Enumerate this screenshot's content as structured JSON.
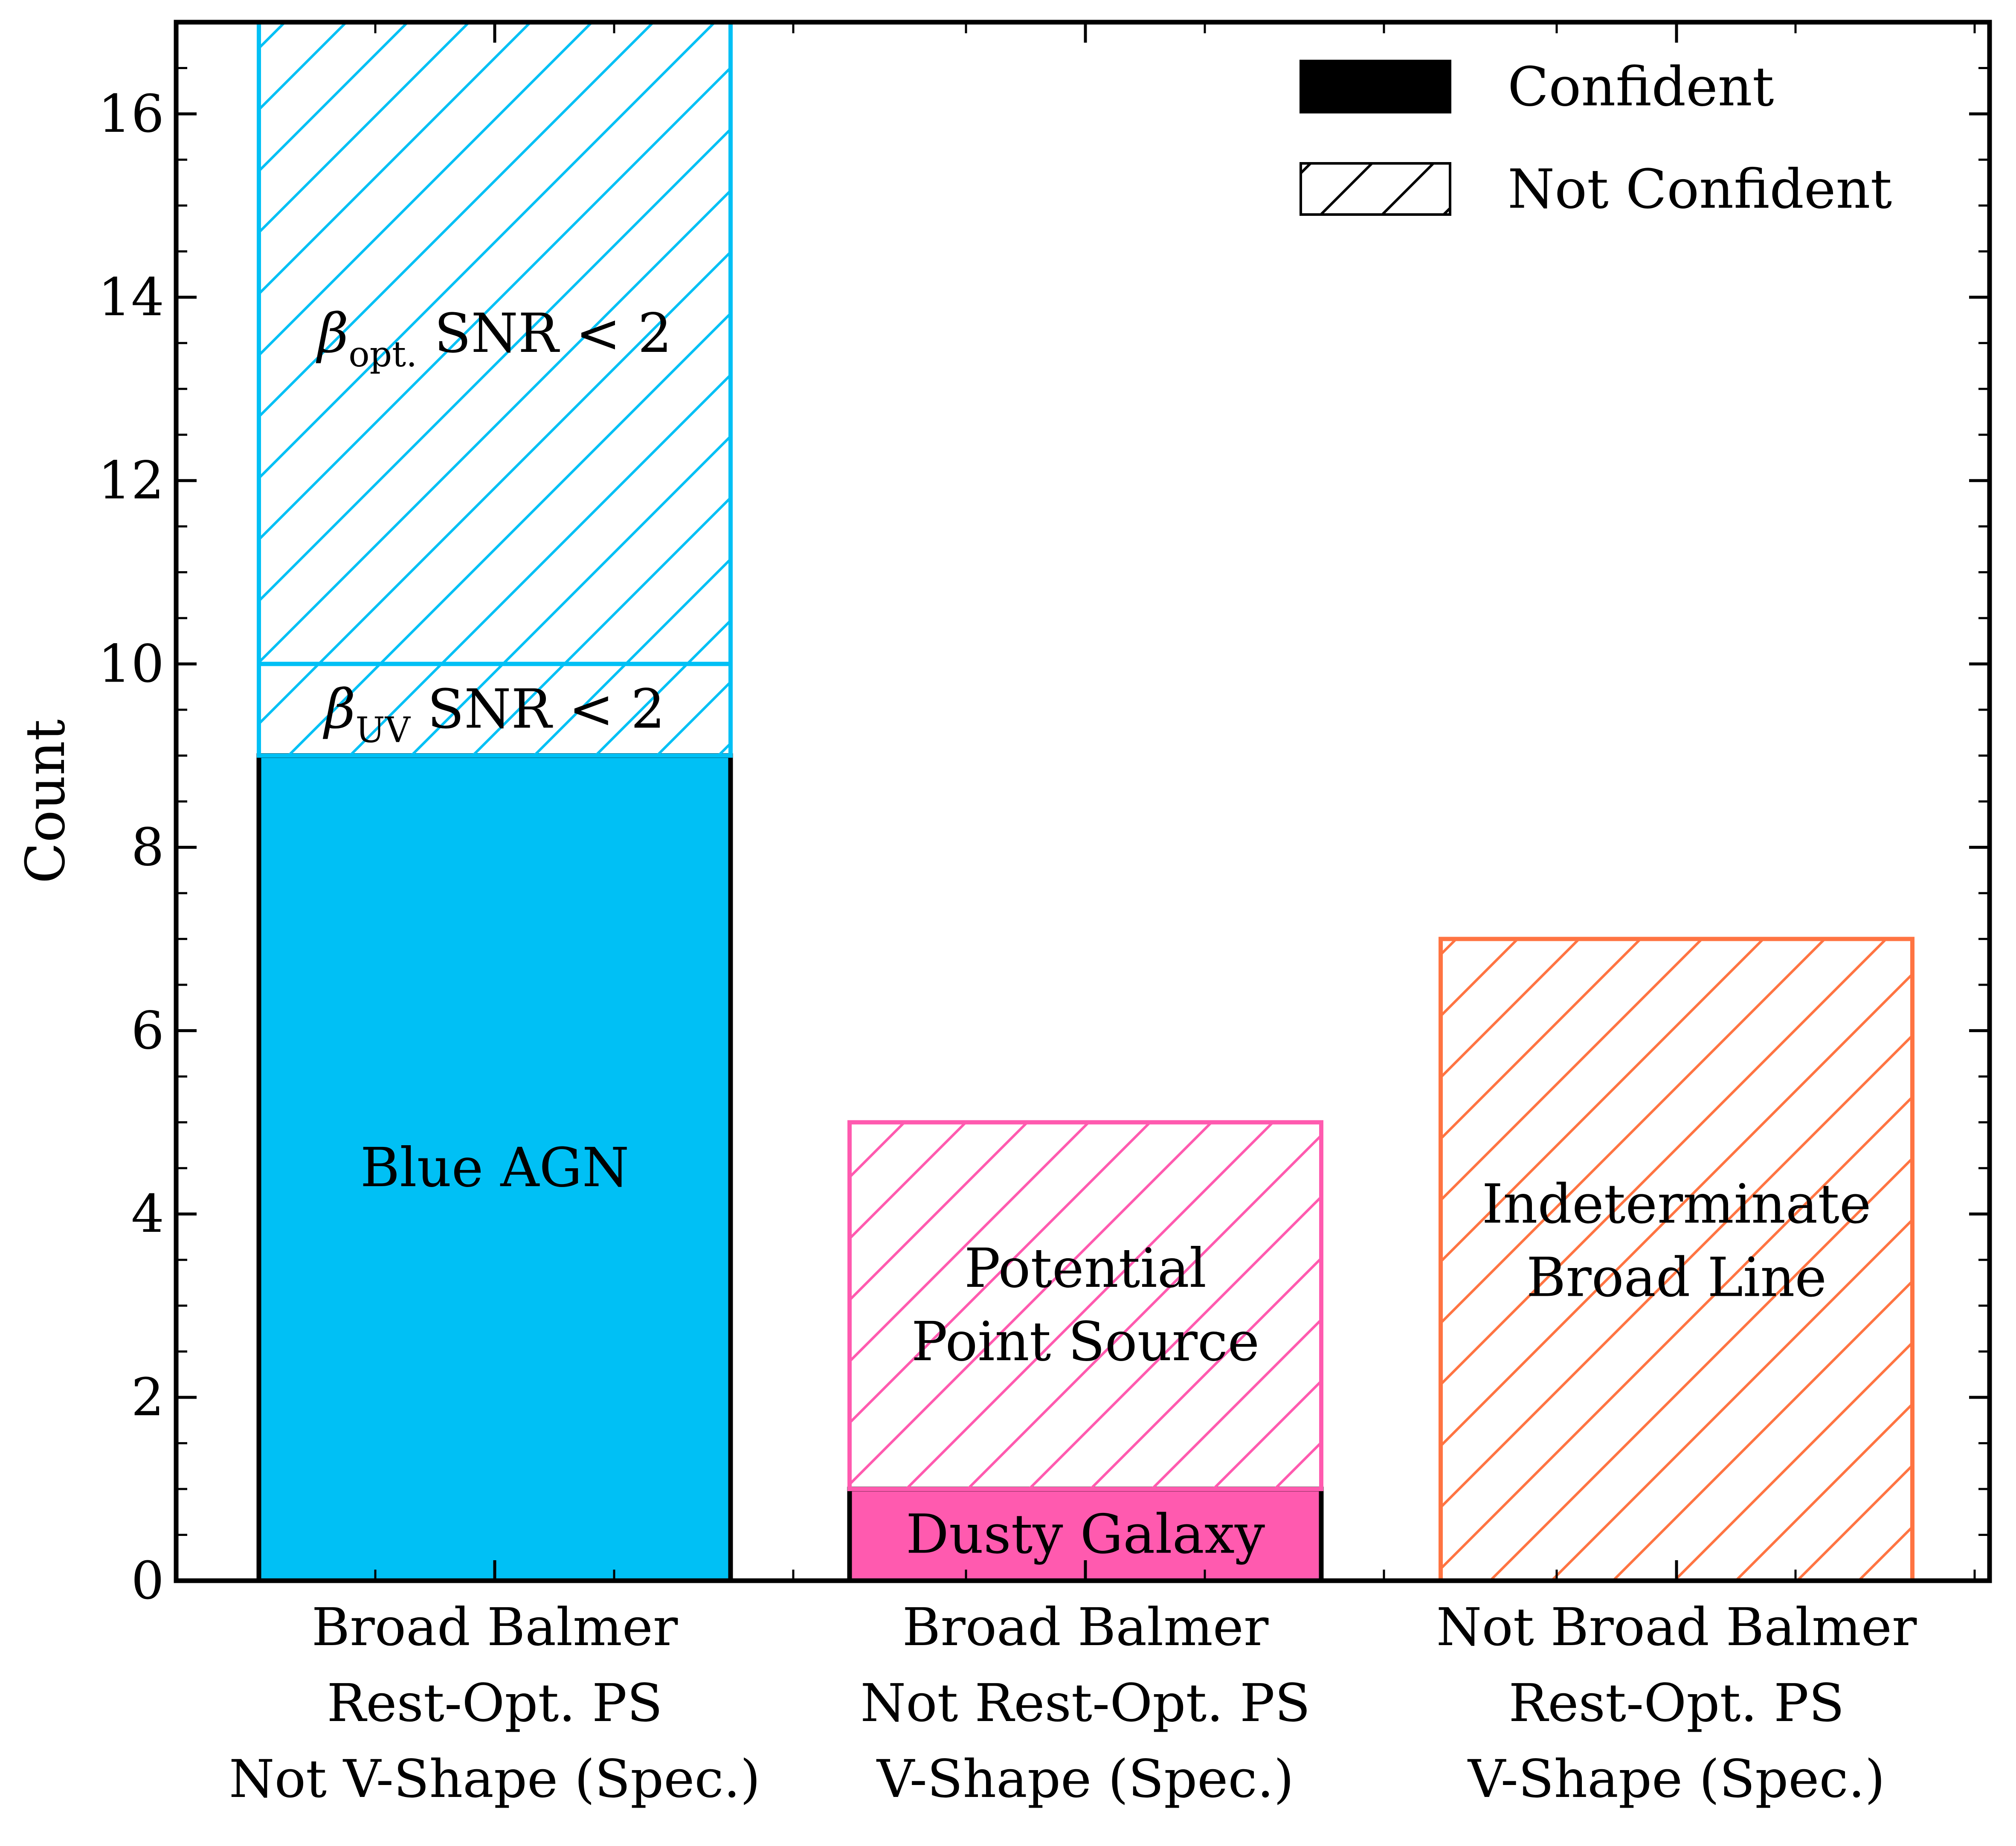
{
  "chart_data": {
    "type": "bar",
    "stacked": true,
    "ylabel": "Count",
    "ylim": [
      0,
      17
    ],
    "yticks": [
      "0",
      "2",
      "4",
      "6",
      "8",
      "10",
      "12",
      "14",
      "16"
    ],
    "categories": [
      [
        "Broad Balmer",
        "Rest-Opt. PS",
        "Not V-Shape (Spec.)"
      ],
      [
        "Broad Balmer",
        "Not Rest-Opt. PS",
        "V-Shape (Spec.)"
      ],
      [
        "Not Broad Balmer",
        "Rest-Opt. PS",
        "V-Shape (Spec.)"
      ]
    ],
    "legend": {
      "placement": "top-right",
      "entries": [
        {
          "label": "Confident",
          "style": "solid"
        },
        {
          "label": "Not Confident",
          "style": "hatched"
        }
      ]
    },
    "bars": [
      {
        "category_index": 0,
        "color": "#00c0f5",
        "segments": [
          {
            "bottom": 0,
            "value": 9,
            "style": "solid",
            "label": "Blue AGN",
            "label_y": 4.5
          },
          {
            "bottom": 9,
            "value": 1,
            "style": "hatched",
            "label_parts": [
              "β",
              "UV",
              " SNR < 2"
            ],
            "label_y": 9.5
          },
          {
            "bottom": 10,
            "value": 7,
            "style": "hatched",
            "label_parts": [
              "β",
              "opt.",
              " SNR < 2"
            ],
            "label_y": 13.6
          }
        ]
      },
      {
        "category_index": 1,
        "color": "#ff5aaf",
        "segments": [
          {
            "bottom": 0,
            "value": 1,
            "style": "solid",
            "label": "Dusty Galaxy",
            "label_y": 0.5
          },
          {
            "bottom": 1,
            "value": 4,
            "style": "hatched",
            "label_lines": [
              "Potential",
              "Point Source"
            ],
            "label_y": 3.0
          }
        ]
      },
      {
        "category_index": 2,
        "color": "#ff7442",
        "segments": [
          {
            "bottom": 0,
            "value": 7,
            "style": "hatched",
            "label_lines": [
              "Indeterminate",
              "Broad Line"
            ],
            "label_y": 3.7
          }
        ]
      }
    ]
  }
}
